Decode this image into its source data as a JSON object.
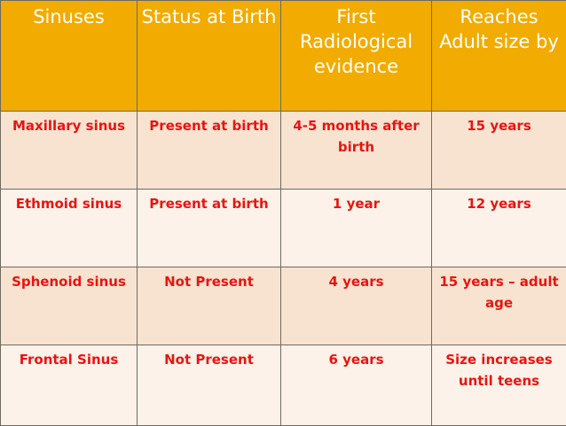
{
  "table": {
    "headers": [
      "Sinuses",
      "Status at Birth",
      "First Radiological evidence",
      "Reaches Adult size by"
    ],
    "rows": [
      [
        "Maxillary sinus",
        "Present at birth",
        "4-5 months after birth",
        "15 years"
      ],
      [
        "Ethmoid sinus",
        "Present at birth",
        "1 year",
        "12 years"
      ],
      [
        "Sphenoid sinus",
        "Not Present",
        "4 years",
        "15 years – adult age"
      ],
      [
        "Frontal Sinus",
        "Not Present",
        "6 years",
        "Size increases until teens"
      ]
    ]
  },
  "colors": {
    "header_bg": "#f2ab00",
    "header_text": "#ffffff",
    "cell_text": "#e8150f",
    "row_odd_bg": "#f8e3d1",
    "row_even_bg": "#fdf2e9",
    "border": "#6f6a5e"
  }
}
